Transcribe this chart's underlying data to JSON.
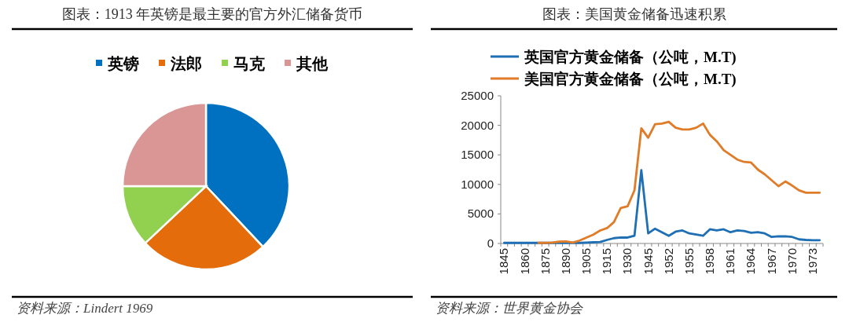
{
  "chart_data": [
    {
      "type": "pie",
      "title": "图表：1913 年英镑是最主要的官方外汇储备货币",
      "categories": [
        "英镑",
        "法郎",
        "马克",
        "其他"
      ],
      "values": [
        38,
        25,
        12,
        25
      ],
      "colors": [
        "#0070c0",
        "#e46c0a",
        "#92d050",
        "#d99694"
      ],
      "legend": "top",
      "annotations": [
        "资料来源：Lindert 1969"
      ]
    },
    {
      "type": "line",
      "title": "图表：美国黄金储备迅速积累",
      "categories": [
        "1845",
        null,
        null,
        "1860",
        null,
        null,
        "1875",
        null,
        null,
        "1890",
        null,
        null,
        "1905",
        null,
        null,
        "1915",
        null,
        null,
        "1930",
        null,
        null,
        "1945",
        null,
        null,
        "1952",
        null,
        null,
        "1955",
        null,
        null,
        "1958",
        null,
        null,
        "1961",
        null,
        null,
        "1964",
        null,
        null,
        "1967",
        null,
        null,
        "1970",
        null,
        null,
        "1973",
        null
      ],
      "series": [
        {
          "name": "英国官方黄金储备（公吨，M.T)",
          "color": "#1f6fb4",
          "values": [
            100,
            100,
            100,
            100,
            100,
            100,
            100,
            100,
            100,
            100,
            100,
            100,
            150,
            200,
            250,
            600,
            900,
            1000,
            1000,
            1300,
            12400,
            1700,
            2500,
            1900,
            1300,
            2000,
            2200,
            1700,
            1500,
            1300,
            2400,
            2200,
            2400,
            1900,
            2200,
            2100,
            1800,
            1900,
            1700,
            1100,
            1200,
            1200,
            1100,
            700,
            600,
            550,
            550
          ]
        },
        {
          "name": "美国官方黄金储备（公吨，M.T)",
          "color": "#e07b28",
          "values": [
            null,
            null,
            null,
            null,
            null,
            100,
            100,
            150,
            300,
            350,
            150,
            500,
            1000,
            1500,
            2200,
            2600,
            3600,
            6000,
            6300,
            9000,
            19500,
            17900,
            20200,
            20300,
            20600,
            19600,
            19300,
            19300,
            19600,
            20300,
            18400,
            17300,
            15800,
            15000,
            14200,
            13800,
            13700,
            12500,
            11700,
            10700,
            9700,
            10500,
            9800,
            9000,
            8600,
            8600,
            8600
          ]
        }
      ],
      "ylim": [
        0,
        25000
      ],
      "yticks": [
        0,
        5000,
        10000,
        15000,
        20000,
        25000
      ],
      "legend": "top left",
      "annotations": [
        "资料来源：世界黄金协会"
      ]
    }
  ]
}
